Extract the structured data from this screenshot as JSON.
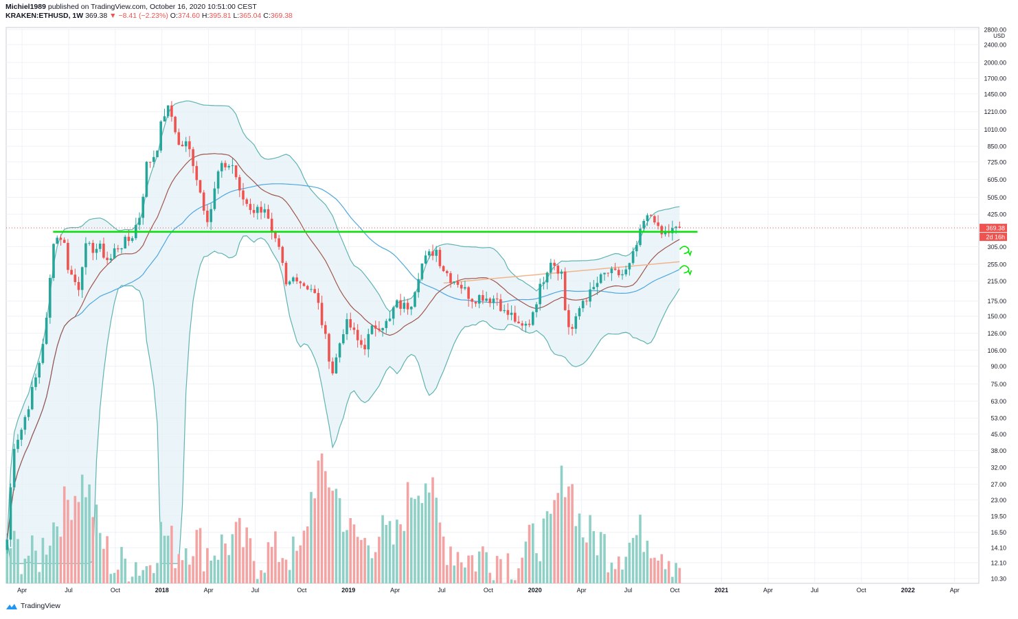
{
  "header": {
    "author": "Michiel1989",
    "published_text": "published on TradingView.com, October 16, 2020 10:51:00 CEST",
    "symbol": "KRAKEN:ETHUSD, 1W",
    "last": "369.38",
    "change": "−8.41 (−2.23%)",
    "o_label": "O:",
    "o_value": "374.60",
    "h_label": "H:",
    "h_value": "395.81",
    "l_label": "L:",
    "l_value": "365.04",
    "c_label": "C:",
    "c_value": "369.38"
  },
  "footer": {
    "brand": "TradingView"
  },
  "colors": {
    "up": "#26a69a",
    "down": "#ef5350",
    "vol_up": "#8fd0c6",
    "vol_down": "#f4a3a3",
    "support": "#00e600",
    "bb_band": "#5fb3b0",
    "ma20": "#a0564d",
    "ma50": "#4da6e0",
    "ma_orange": "#f2b48a",
    "grid": "#eef1f6"
  },
  "chart_data": {
    "type": "candlestick",
    "title": "KRAKEN:ETHUSD, 1W",
    "y_scale": "log",
    "ylabel": "USD",
    "x_ticks": [
      "Apr",
      "Jul",
      "Oct",
      "2018",
      "Apr",
      "Jul",
      "Oct",
      "2019",
      "Apr",
      "Jul",
      "Oct",
      "2020",
      "Apr",
      "Jul",
      "Oct",
      "2021",
      "Apr",
      "Jul",
      "Oct",
      "2022",
      "Apr"
    ],
    "y_ticks": [
      "2800.00",
      "2400.00",
      "2000.00",
      "1700.00",
      "1450.00",
      "1210.00",
      "1010.00",
      "850.00",
      "725.00",
      "605.00",
      "505.00",
      "425.00",
      "305.00",
      "255.00",
      "215.00",
      "175.00",
      "150.00",
      "126.00",
      "106.00",
      "90.00",
      "75.00",
      "63.00",
      "53.00",
      "45.00",
      "38.00",
      "32.00",
      "27.00",
      "23.00",
      "19.50",
      "16.50",
      "14.10",
      "12.10",
      "10.30"
    ],
    "last_price_label": "369.38",
    "countdown_label": "2d 16h",
    "support_level": 355,
    "close_path": [
      [
        "2017-03",
        14
      ],
      [
        "2017-03-15",
        40
      ],
      [
        "2017-04",
        48
      ],
      [
        "2017-05",
        85
      ],
      [
        "2017-05-20",
        150
      ],
      [
        "2017-06",
        330
      ],
      [
        "2017-06-20",
        340
      ],
      [
        "2017-07",
        240
      ],
      [
        "2017-07-20",
        200
      ],
      [
        "2017-08",
        300
      ],
      [
        "2017-09",
        300
      ],
      [
        "2017-09-20",
        260
      ],
      [
        "2017-10",
        300
      ],
      [
        "2017-11",
        330
      ],
      [
        "2017-11-20",
        430
      ],
      [
        "2017-12",
        700
      ],
      [
        "2017-12-20",
        800
      ],
      [
        "2018-01",
        1100
      ],
      [
        "2018-01-10",
        1270
      ],
      [
        "2018-01-25",
        1100
      ],
      [
        "2018-02",
        850
      ],
      [
        "2018-02-20",
        870
      ],
      [
        "2018-03",
        730
      ],
      [
        "2018-03-20",
        480
      ],
      [
        "2018-04",
        400
      ],
      [
        "2018-04-20",
        650
      ],
      [
        "2018-05",
        700
      ],
      [
        "2018-05-20",
        700
      ],
      [
        "2018-06",
        520
      ],
      [
        "2018-06-20",
        460
      ],
      [
        "2018-07",
        440
      ],
      [
        "2018-07-20",
        460
      ],
      [
        "2018-08",
        350
      ],
      [
        "2018-08-20",
        280
      ],
      [
        "2018-09",
        200
      ],
      [
        "2018-09-20",
        230
      ],
      [
        "2018-10",
        210
      ],
      [
        "2018-10-20",
        200
      ],
      [
        "2018-11",
        175
      ],
      [
        "2018-11-20",
        110
      ],
      [
        "2018-12",
        84
      ],
      [
        "2018-12-20",
        130
      ],
      [
        "2019-01",
        140
      ],
      [
        "2019-01-20",
        115
      ],
      [
        "2019-02",
        110
      ],
      [
        "2019-02-20",
        135
      ],
      [
        "2019-03",
        138
      ],
      [
        "2019-03-20",
        140
      ],
      [
        "2019-04",
        170
      ],
      [
        "2019-04-20",
        165
      ],
      [
        "2019-05",
        170
      ],
      [
        "2019-05-20",
        250
      ],
      [
        "2019-06",
        270
      ],
      [
        "2019-06-20",
        300
      ],
      [
        "2019-07",
        250
      ],
      [
        "2019-07-20",
        220
      ],
      [
        "2019-08",
        215
      ],
      [
        "2019-08-20",
        190
      ],
      [
        "2019-09",
        180
      ],
      [
        "2019-09-20",
        185
      ],
      [
        "2019-10",
        180
      ],
      [
        "2019-10-20",
        180
      ],
      [
        "2019-11",
        155
      ],
      [
        "2019-11-20",
        150
      ],
      [
        "2019-12",
        130
      ],
      [
        "2019-12-20",
        140
      ],
      [
        "2020-01",
        170
      ],
      [
        "2020-01-20",
        230
      ],
      [
        "2020-02",
        270
      ],
      [
        "2020-02-10",
        255
      ],
      [
        "2020-02-25",
        230
      ],
      [
        "2020-03",
        140
      ],
      [
        "2020-03-15",
        130
      ],
      [
        "2020-04",
        175
      ],
      [
        "2020-04-20",
        190
      ],
      [
        "2020-05",
        210
      ],
      [
        "2020-05-20",
        235
      ],
      [
        "2020-06",
        230
      ],
      [
        "2020-06-20",
        230
      ],
      [
        "2020-07",
        240
      ],
      [
        "2020-07-20",
        320
      ],
      [
        "2020-08",
        390
      ],
      [
        "2020-08-20",
        430
      ],
      [
        "2020-09",
        340
      ],
      [
        "2020-09-20",
        355
      ],
      [
        "2020-10",
        360
      ],
      [
        "2020-10-16",
        369.38
      ]
    ],
    "volume_path": [
      [
        "2017-03",
        14
      ],
      [
        "2017-05",
        12
      ],
      [
        "2017-07",
        22
      ],
      [
        "2017-08",
        27
      ],
      [
        "2017-09",
        15
      ],
      [
        "2017-10",
        11
      ],
      [
        "2017-11",
        12
      ],
      [
        "2017-12",
        11
      ],
      [
        "2018-01",
        16
      ],
      [
        "2018-02",
        13
      ],
      [
        "2018-03",
        15
      ],
      [
        "2018-04",
        13
      ],
      [
        "2018-05",
        14
      ],
      [
        "2018-06",
        15
      ],
      [
        "2018-07",
        12
      ],
      [
        "2018-08",
        13
      ],
      [
        "2018-09",
        13
      ],
      [
        "2018-10",
        12
      ],
      [
        "2018-11",
        30
      ],
      [
        "2018-12",
        26
      ],
      [
        "2019-01",
        16
      ],
      [
        "2019-02",
        14
      ],
      [
        "2019-03",
        16
      ],
      [
        "2019-04",
        14
      ],
      [
        "2019-05",
        24
      ],
      [
        "2019-06",
        28
      ],
      [
        "2019-07",
        15
      ],
      [
        "2019-08",
        13
      ],
      [
        "2019-09",
        12
      ],
      [
        "2019-10",
        13
      ],
      [
        "2019-11",
        12
      ],
      [
        "2019-12",
        12
      ],
      [
        "2020-01",
        15
      ],
      [
        "2020-02",
        16
      ],
      [
        "2020-03",
        30
      ],
      [
        "2020-04",
        16
      ],
      [
        "2020-05",
        15
      ],
      [
        "2020-06",
        13
      ],
      [
        "2020-07",
        14
      ],
      [
        "2020-08",
        16
      ],
      [
        "2020-09",
        14
      ],
      [
        "2020-10",
        12
      ]
    ]
  }
}
